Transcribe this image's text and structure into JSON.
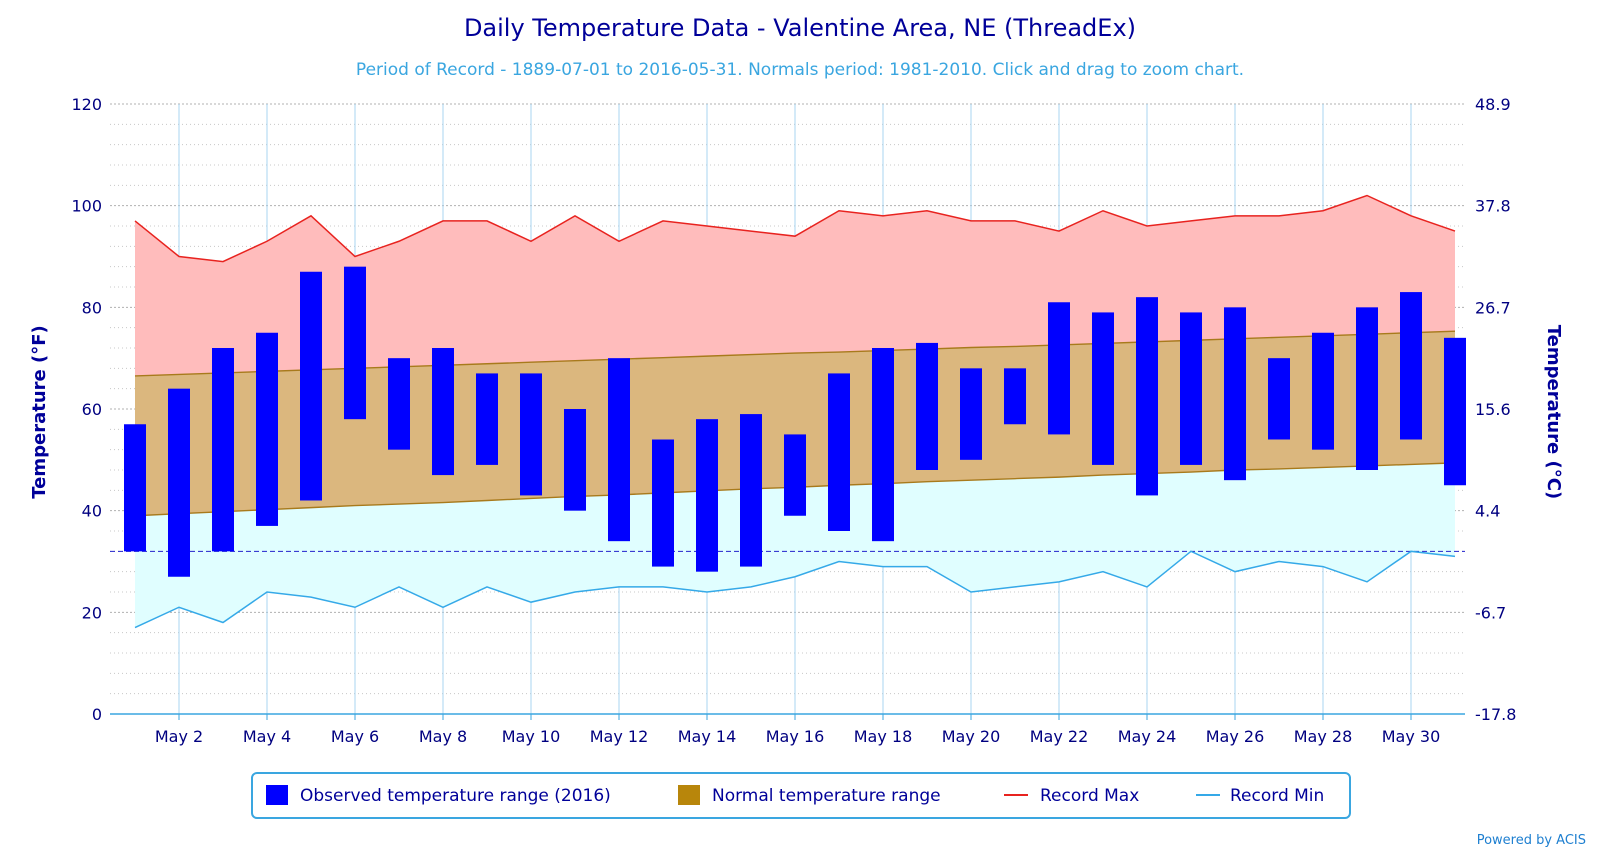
{
  "chart_data": {
    "type": "bar",
    "title": "Daily Temperature Data - Valentine Area, NE (ThreadEx)",
    "subtitle": "Period of Record - 1889-07-01 to 2016-05-31. Normals period: 1981-2010. Click and drag to zoom chart.",
    "ylabel_left": "Temperature (°F)",
    "ylabel_right": "Temperature (°C)",
    "ylim": [
      0,
      120
    ],
    "y_ticks": [
      0,
      20,
      40,
      60,
      80,
      100,
      120
    ],
    "y_ticks_right": [
      "-17.8",
      "-6.7",
      "4.4",
      "15.6",
      "26.7",
      "37.8",
      "48.9"
    ],
    "freezing_line": 32,
    "x_days": [
      1,
      2,
      3,
      4,
      5,
      6,
      7,
      8,
      9,
      10,
      11,
      12,
      13,
      14,
      15,
      16,
      17,
      18,
      19,
      20,
      21,
      22,
      23,
      24,
      25,
      26,
      27,
      28,
      29,
      30,
      31
    ],
    "x_tick_labels": [
      "May 2",
      "May 4",
      "May 6",
      "May 8",
      "May 10",
      "May 12",
      "May 14",
      "May 16",
      "May 18",
      "May 20",
      "May 22",
      "May 24",
      "May 26",
      "May 28",
      "May 30"
    ],
    "x_tick_days": [
      2,
      4,
      6,
      8,
      10,
      12,
      14,
      16,
      18,
      20,
      22,
      24,
      26,
      28,
      30
    ],
    "series": [
      {
        "name": "Observed temperature range (2016)",
        "color": "#0000ff",
        "low": [
          32,
          27,
          32,
          37,
          42,
          58,
          52,
          47,
          49,
          43,
          40,
          34,
          29,
          28,
          29,
          39,
          36,
          34,
          48,
          50,
          57,
          55,
          49,
          43,
          49,
          46,
          54,
          52,
          48,
          54,
          45
        ],
        "high": [
          57,
          64,
          72,
          75,
          87,
          88,
          70,
          72,
          67,
          67,
          60,
          70,
          54,
          58,
          59,
          55,
          67,
          72,
          73,
          68,
          68,
          81,
          79,
          82,
          79,
          80,
          70,
          75,
          80,
          83,
          74
        ]
      },
      {
        "name": "Normal temperature range",
        "color": "#b8860b",
        "low": [
          39,
          39.4,
          39.8,
          40.2,
          40.6,
          41,
          41.3,
          41.6,
          42,
          42.4,
          42.8,
          43.1,
          43.5,
          43.9,
          44.3,
          44.6,
          45,
          45.3,
          45.7,
          46,
          46.3,
          46.6,
          47,
          47.3,
          47.6,
          48,
          48.2,
          48.5,
          48.8,
          49.1,
          49.4
        ],
        "high": [
          66.5,
          66.8,
          67.1,
          67.4,
          67.7,
          68,
          68.3,
          68.6,
          68.9,
          69.2,
          69.5,
          69.8,
          70.1,
          70.4,
          70.7,
          71,
          71.2,
          71.5,
          71.8,
          72.1,
          72.3,
          72.6,
          72.9,
          73.2,
          73.5,
          73.8,
          74.1,
          74.4,
          74.7,
          75,
          75.3
        ]
      },
      {
        "name": "Record Max",
        "color": "#e8231f",
        "values": [
          97,
          90,
          89,
          93,
          98,
          90,
          93,
          97,
          97,
          93,
          98,
          93,
          97,
          96,
          95,
          94,
          99,
          98,
          99,
          97,
          97,
          95,
          99,
          96,
          97,
          98,
          98,
          99,
          102,
          98,
          95
        ]
      },
      {
        "name": "Record Min",
        "color": "#35a9e8",
        "values": [
          17,
          21,
          18,
          24,
          23,
          21,
          25,
          21,
          25,
          22,
          24,
          25,
          25,
          24,
          25,
          27,
          30,
          29,
          29,
          24,
          25,
          26,
          28,
          25,
          32,
          28,
          30,
          29,
          26,
          32,
          31
        ]
      }
    ],
    "legend_position": "bottom-center",
    "grid": true,
    "credit": "Powered by ACIS"
  }
}
